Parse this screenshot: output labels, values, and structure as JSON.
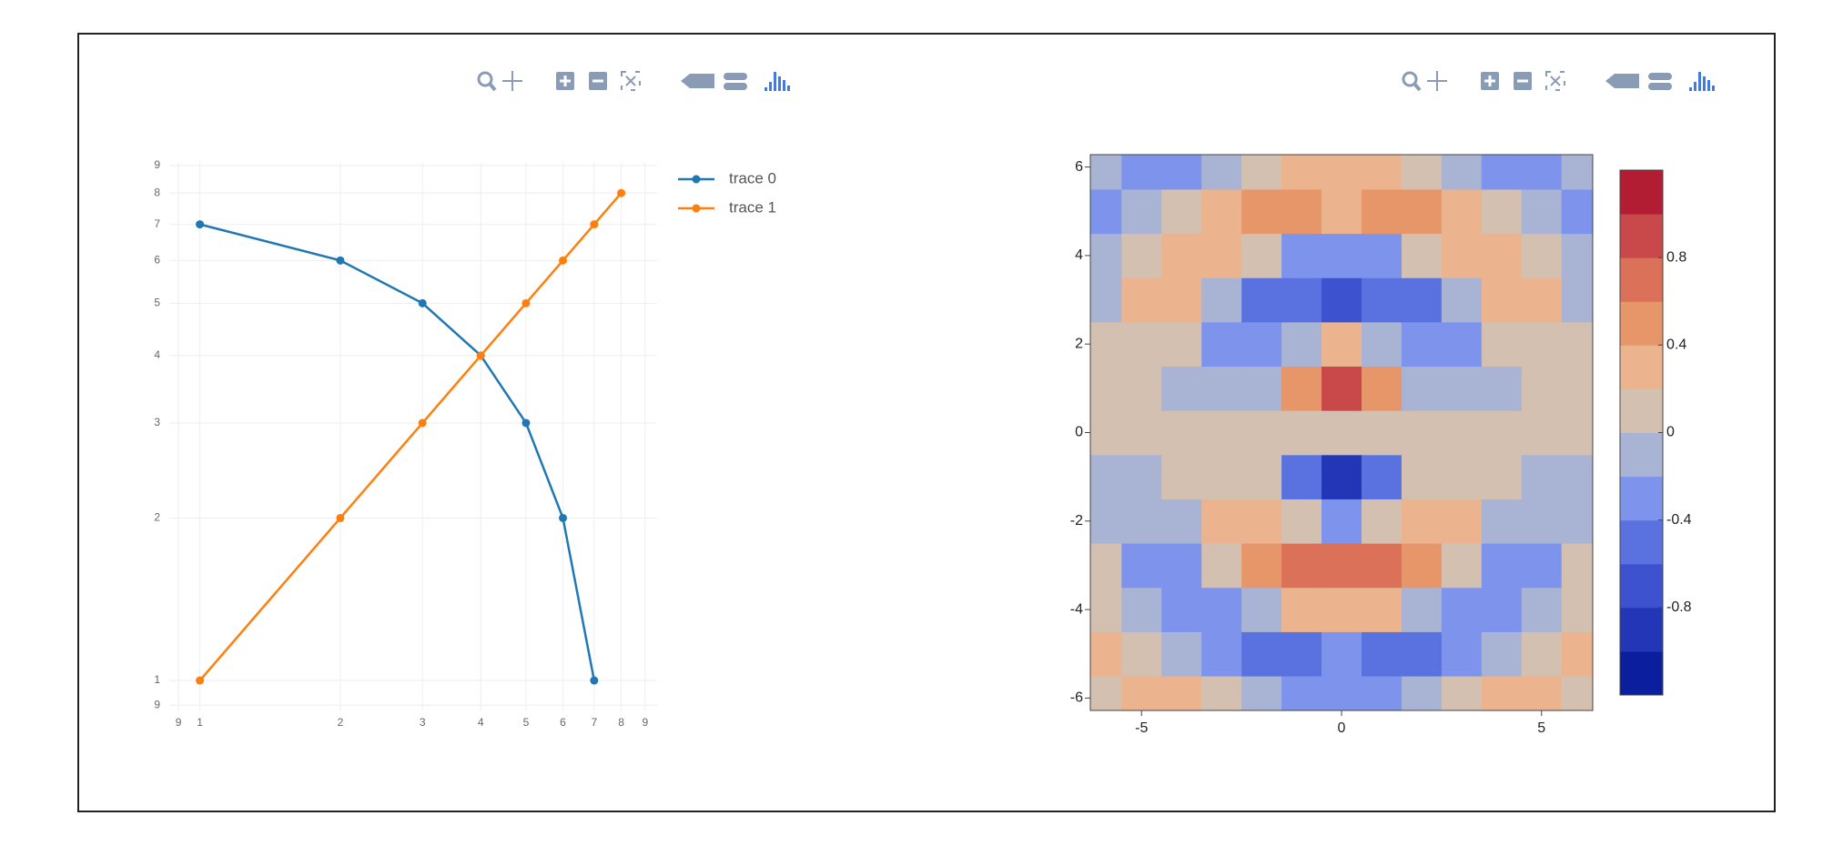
{
  "chart_data": [
    {
      "type": "line",
      "xscale": "log",
      "yscale": "log",
      "grid": true,
      "legend": "top-right",
      "xlim": [
        0.86,
        9.55
      ],
      "ylim": [
        0.88,
        9.1
      ],
      "xticks": [
        {
          "value": 0.9,
          "label": "9"
        },
        1,
        2,
        3,
        4,
        5,
        6,
        7,
        8,
        9
      ],
      "yticks": [
        {
          "value": 0.9,
          "label": "9"
        },
        1,
        2,
        3,
        4,
        5,
        6,
        7,
        8,
        9
      ],
      "series": [
        {
          "name": "trace 0",
          "color": "#1f77b4",
          "x": [
            1,
            2,
            3,
            4,
            5,
            6,
            7
          ],
          "values": [
            7,
            6,
            5,
            4,
            3,
            2,
            1
          ]
        },
        {
          "name": "trace 1",
          "color": "#ff7f0e",
          "x": [
            1,
            2,
            3,
            4,
            5,
            6,
            7,
            8
          ],
          "values": [
            1,
            2,
            3,
            4,
            5,
            6,
            7,
            8
          ]
        }
      ]
    },
    {
      "type": "contour",
      "xlim": [
        -6.28,
        6.28
      ],
      "ylim": [
        -6.28,
        6.28
      ],
      "xticks": [
        -5,
        0,
        5
      ],
      "yticks": [
        -6,
        -4,
        -2,
        0,
        2,
        4,
        6
      ],
      "contours": {
        "start": -1,
        "end": 1,
        "size": 0.2
      },
      "colorscale": [
        "#0b1f9e",
        "#2436b8",
        "#3c52cf",
        "#5a72e0",
        "#7d93ec",
        "#a9b3d4",
        "#d3c0b0",
        "#ebb48e",
        "#e69669",
        "#da7158",
        "#c9484a",
        "#b21d33"
      ],
      "colorbar_ticks": [
        -0.8,
        -0.4,
        0,
        0.4,
        0.8
      ],
      "x": [
        -6,
        -5,
        -4,
        -3,
        -2,
        -1,
        0,
        1,
        2,
        3,
        4,
        5,
        6
      ],
      "y": [
        -6,
        -5,
        -4,
        -3,
        -2,
        -1,
        0,
        1,
        2,
        3,
        4,
        5,
        6
      ],
      "z": [
        [
          0.1,
          0.28,
          0.26,
          0.06,
          -0.15,
          -0.29,
          -0.33,
          -0.29,
          -0.15,
          0.06,
          0.26,
          0.28,
          0.1
        ],
        [
          0.23,
          0.18,
          -0.09,
          -0.34,
          -0.44,
          -0.41,
          -0.38,
          -0.41,
          -0.44,
          -0.34,
          -0.09,
          0.18,
          0.23
        ],
        [
          0.17,
          -0.07,
          -0.32,
          -0.3,
          -0.05,
          0.21,
          0.3,
          0.21,
          -0.05,
          -0.3,
          -0.32,
          -0.07,
          0.17
        ],
        [
          0.03,
          -0.21,
          -0.23,
          0.08,
          0.46,
          0.6,
          0.61,
          0.6,
          0.46,
          0.08,
          -0.23,
          -0.21,
          0.03
        ],
        [
          -0.05,
          -0.17,
          -0.03,
          0.3,
          0.38,
          0.04,
          -0.22,
          0.04,
          0.38,
          0.3,
          -0.03,
          -0.17,
          -0.05
        ],
        [
          -0.05,
          -0.08,
          0.05,
          0.2,
          0.02,
          -0.58,
          -0.99,
          -0.58,
          0.02,
          0.2,
          0.05,
          -0.08,
          -0.05
        ],
        [
          0,
          0,
          0,
          0,
          0,
          0,
          0,
          0,
          0,
          0,
          0,
          0,
          0
        ],
        [
          0.05,
          0.08,
          -0.05,
          -0.2,
          -0.02,
          0.58,
          0.99,
          0.58,
          -0.02,
          -0.2,
          -0.05,
          0.08,
          0.05
        ],
        [
          0.05,
          0.17,
          0.03,
          -0.3,
          -0.38,
          -0.04,
          0.22,
          -0.04,
          -0.38,
          -0.3,
          0.03,
          0.17,
          0.05
        ],
        [
          -0.03,
          0.21,
          0.23,
          -0.08,
          -0.46,
          -0.6,
          -0.61,
          -0.6,
          -0.46,
          -0.08,
          0.23,
          0.21,
          -0.03
        ],
        [
          -0.17,
          0.07,
          0.32,
          0.3,
          0.05,
          -0.21,
          -0.3,
          -0.21,
          0.05,
          0.3,
          0.32,
          0.07,
          -0.17
        ],
        [
          -0.23,
          -0.18,
          0.09,
          0.34,
          0.44,
          0.41,
          0.38,
          0.41,
          0.44,
          0.34,
          0.09,
          -0.18,
          -0.23
        ],
        [
          -0.1,
          -0.28,
          -0.26,
          -0.06,
          0.15,
          0.29,
          0.33,
          0.29,
          0.15,
          -0.06,
          -0.26,
          -0.28,
          -0.1
        ]
      ]
    }
  ]
}
